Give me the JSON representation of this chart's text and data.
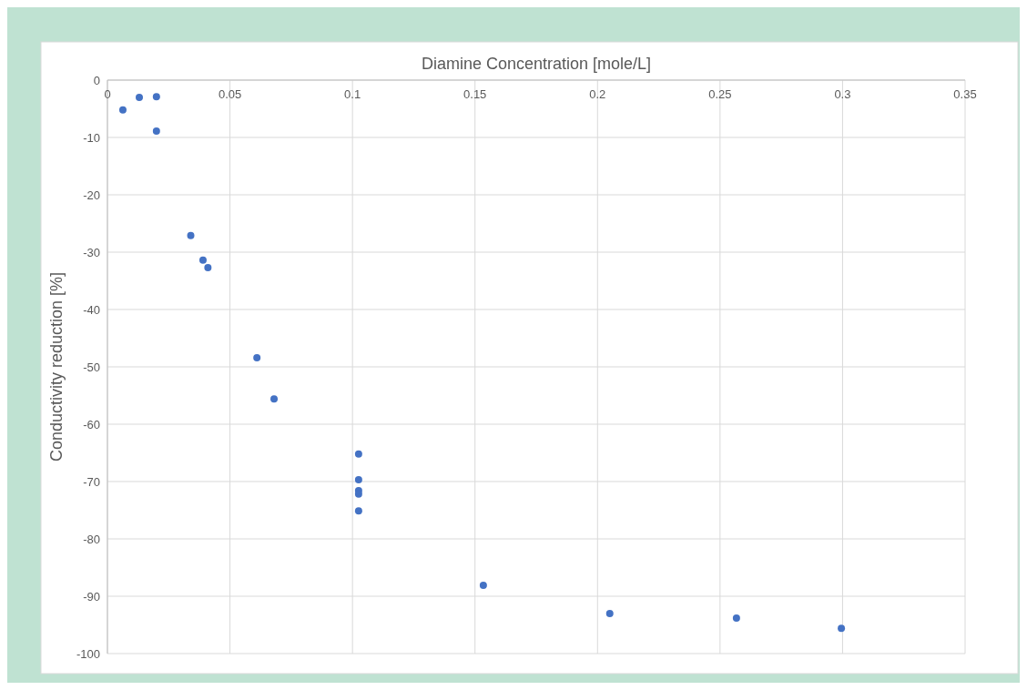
{
  "chart_data": {
    "type": "scatter",
    "xlabel": "Diamine Concentration [mole/L]",
    "ylabel": "Conductivity reduction [%]",
    "x": [
      0.0063,
      0.013,
      0.02,
      0.02,
      0.034,
      0.039,
      0.041,
      0.061,
      0.068,
      0.1025,
      0.1025,
      0.1025,
      0.1025,
      0.1025,
      0.1534,
      0.205,
      0.2567,
      0.2995
    ],
    "series": [
      {
        "color": "#4472c4",
        "values": [
          -5.2,
          -3.0,
          -2.9,
          -8.9,
          -27.1,
          -31.4,
          -32.7,
          -48.4,
          -55.6,
          -65.2,
          -69.7,
          -71.6,
          -72.2,
          -75.1,
          -88.1,
          -93.0,
          -93.8,
          -95.6
        ]
      }
    ],
    "xlim": [
      0,
      0.35
    ],
    "xticks": [
      0,
      0.05,
      0.1,
      0.15,
      0.2,
      0.25,
      0.3,
      0.35
    ],
    "ylim": [
      -100,
      0
    ],
    "yticks": [
      0,
      -10,
      -20,
      -30,
      -40,
      -50,
      -60,
      -70,
      -80,
      -90,
      -100
    ],
    "grid": true,
    "marker": "circle"
  }
}
